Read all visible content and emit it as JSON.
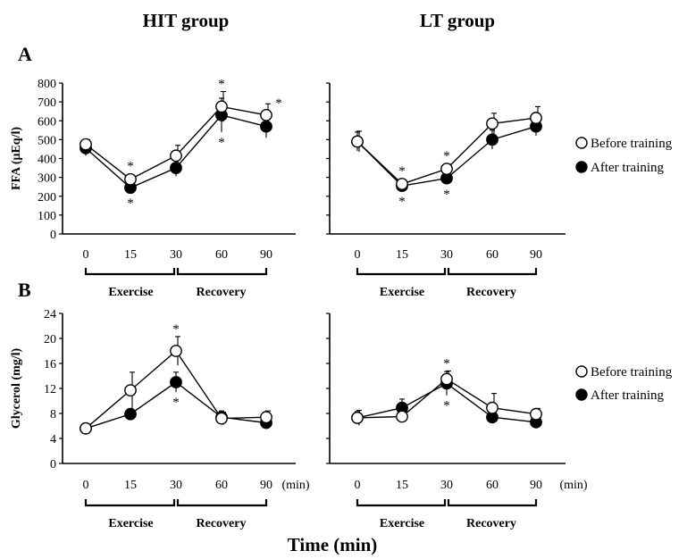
{
  "headers": {
    "hit": "HIT group",
    "lt": "LT group"
  },
  "panel_labels": {
    "a": "A",
    "b": "B"
  },
  "x_axis_title": "Time (min)",
  "x_unit": "(min)",
  "phase_labels": {
    "exercise": "Exercise",
    "recovery": "Recovery"
  },
  "legend": {
    "before": "Before training",
    "after": "After training"
  },
  "colors": {
    "before_fill": "#ffffff",
    "after_fill": "#000000",
    "line": "#000000"
  },
  "chart_data": [
    {
      "id": "ffa_hit",
      "type": "line",
      "ylabel": "FFA (μEq/l)",
      "ylim": [
        0,
        800
      ],
      "yticks": [
        0,
        100,
        200,
        300,
        400,
        500,
        600,
        700,
        800
      ],
      "show_ytick_labels": true,
      "categories": [
        "0",
        "15",
        "30",
        "60",
        "90"
      ],
      "series": [
        {
          "name": "Before training",
          "marker": "open-circle",
          "values": [
            475,
            290,
            415,
            675,
            630
          ],
          "errors": [
            25,
            20,
            55,
            80,
            60
          ]
        },
        {
          "name": "After training",
          "marker": "filled-circle",
          "values": [
            455,
            245,
            350,
            630,
            570
          ],
          "errors": [
            40,
            25,
            45,
            90,
            60
          ]
        }
      ],
      "significance": [
        {
          "category": "15",
          "label": "*",
          "position": "above"
        },
        {
          "category": "15",
          "label": "*",
          "position": "below"
        },
        {
          "category": "60",
          "label": "*",
          "position": "above"
        },
        {
          "category": "60",
          "label": "*",
          "position": "below"
        },
        {
          "category": "90",
          "label": "*",
          "position": "right"
        }
      ]
    },
    {
      "id": "ffa_lt",
      "type": "line",
      "ylabel": "",
      "ylim": [
        0,
        800
      ],
      "yticks": [
        0,
        100,
        200,
        300,
        400,
        500,
        600,
        700,
        800
      ],
      "show_ytick_labels": false,
      "categories": [
        "0",
        "15",
        "30",
        "60",
        "90"
      ],
      "series": [
        {
          "name": "Before training",
          "marker": "open-circle",
          "values": [
            490,
            265,
            345,
            585,
            615
          ],
          "errors": [
            55,
            20,
            25,
            55,
            60
          ]
        },
        {
          "name": "After training",
          "marker": "filled-circle",
          "values": [
            490,
            255,
            295,
            500,
            570
          ],
          "errors": [
            50,
            20,
            30,
            50,
            50
          ]
        }
      ],
      "significance": [
        {
          "category": "15",
          "label": "*",
          "position": "above"
        },
        {
          "category": "15",
          "label": "*",
          "position": "below"
        },
        {
          "category": "30",
          "label": "*",
          "position": "above"
        },
        {
          "category": "30",
          "label": "*",
          "position": "below"
        }
      ]
    },
    {
      "id": "glycerol_hit",
      "type": "line",
      "ylabel": "Glycerol (mg/l)",
      "ylim": [
        0,
        24
      ],
      "yticks": [
        0,
        4,
        8,
        12,
        16,
        20,
        24
      ],
      "show_ytick_labels": true,
      "categories": [
        "0",
        "15",
        "30",
        "60",
        "90"
      ],
      "series": [
        {
          "name": "Before training",
          "marker": "open-circle",
          "values": [
            5.6,
            11.7,
            18.0,
            7.2,
            7.4
          ],
          "errors": [
            0.3,
            2.9,
            2.3,
            1.0,
            1.0
          ]
        },
        {
          "name": "After training",
          "marker": "filled-circle",
          "values": [
            5.6,
            7.9,
            13.0,
            7.4,
            6.5
          ],
          "errors": [
            0.4,
            0.7,
            1.6,
            1.0,
            1.0
          ]
        }
      ],
      "significance": [
        {
          "category": "30",
          "label": "*",
          "position": "above"
        },
        {
          "category": "30",
          "label": "*",
          "position": "below"
        }
      ]
    },
    {
      "id": "glycerol_lt",
      "type": "line",
      "ylabel": "",
      "ylim": [
        0,
        24
      ],
      "yticks": [
        0,
        4,
        8,
        12,
        16,
        20,
        24
      ],
      "show_ytick_labels": false,
      "categories": [
        "0",
        "15",
        "30",
        "60",
        "90"
      ],
      "series": [
        {
          "name": "Before training",
          "marker": "open-circle",
          "values": [
            7.3,
            7.5,
            13.5,
            8.9,
            7.9
          ],
          "errors": [
            1.2,
            0.6,
            1.3,
            2.3,
            0.9
          ]
        },
        {
          "name": "After training",
          "marker": "filled-circle",
          "values": [
            7.3,
            8.9,
            12.8,
            7.4,
            6.6
          ],
          "errors": [
            1.0,
            1.4,
            1.9,
            1.0,
            0.6
          ]
        }
      ],
      "significance": [
        {
          "category": "30",
          "label": "*",
          "position": "above"
        },
        {
          "category": "30",
          "label": "*",
          "position": "below"
        }
      ]
    }
  ]
}
